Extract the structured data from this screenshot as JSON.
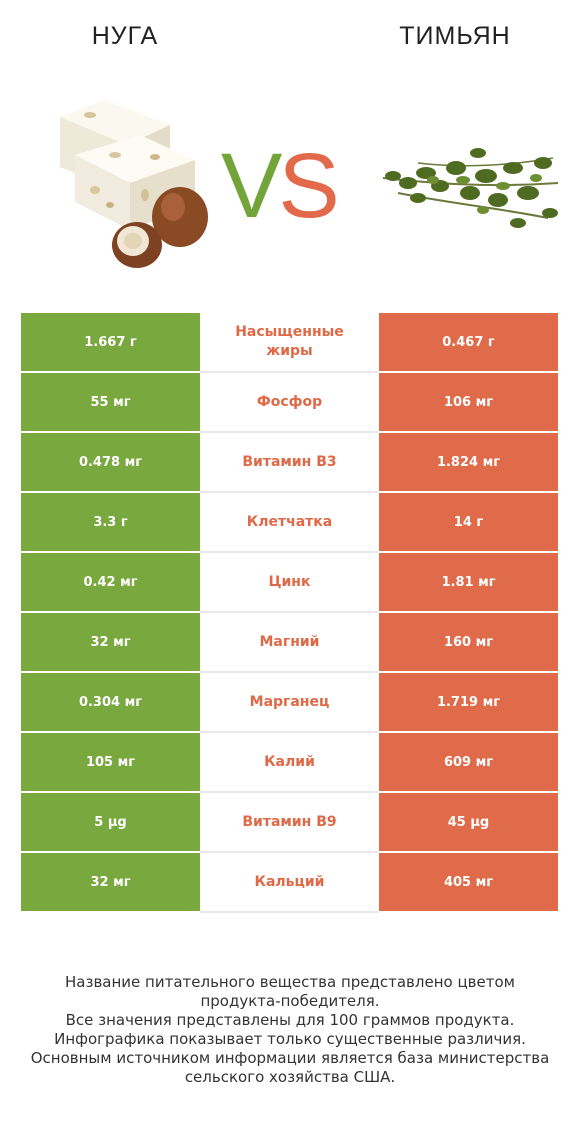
{
  "left_food": {
    "name": "НУГА",
    "color": "#79a83f"
  },
  "right_food": {
    "name": "ТИМЬЯН",
    "color": "#e06b4a"
  },
  "vs": {
    "v": "V",
    "s": "S"
  },
  "rows": [
    {
      "left": "1.667 г",
      "nutrient": "Насыщенные жиры",
      "right": "0.467 г"
    },
    {
      "left": "55 мг",
      "nutrient": "Фосфор",
      "right": "106 мг"
    },
    {
      "left": "0.478 мг",
      "nutrient": "Витамин B3",
      "right": "1.824 мг"
    },
    {
      "left": "3.3 г",
      "nutrient": "Клетчатка",
      "right": "14 г"
    },
    {
      "left": "0.42 мг",
      "nutrient": "Цинк",
      "right": "1.81 мг"
    },
    {
      "left": "32 мг",
      "nutrient": "Магний",
      "right": "160 мг"
    },
    {
      "left": "0.304 мг",
      "nutrient": "Марганец",
      "right": "1.719 мг"
    },
    {
      "left": "105 мг",
      "nutrient": "Калий",
      "right": "609 мг"
    },
    {
      "left": "5 µg",
      "nutrient": "Витамин B9",
      "right": "45 µg"
    },
    {
      "left": "32 мг",
      "nutrient": "Кальций",
      "right": "405 мг"
    }
  ],
  "footer": {
    "line1": "Название питательного вещества представлено цветом",
    "line2": "продукта-победителя.",
    "line3": "Все значения представлены для 100 граммов продукта.",
    "line4": "Инфографика показывает только существенные различия.",
    "line5": "Основным источником информации является база министерства",
    "line6": "сельского хозяйства США."
  }
}
